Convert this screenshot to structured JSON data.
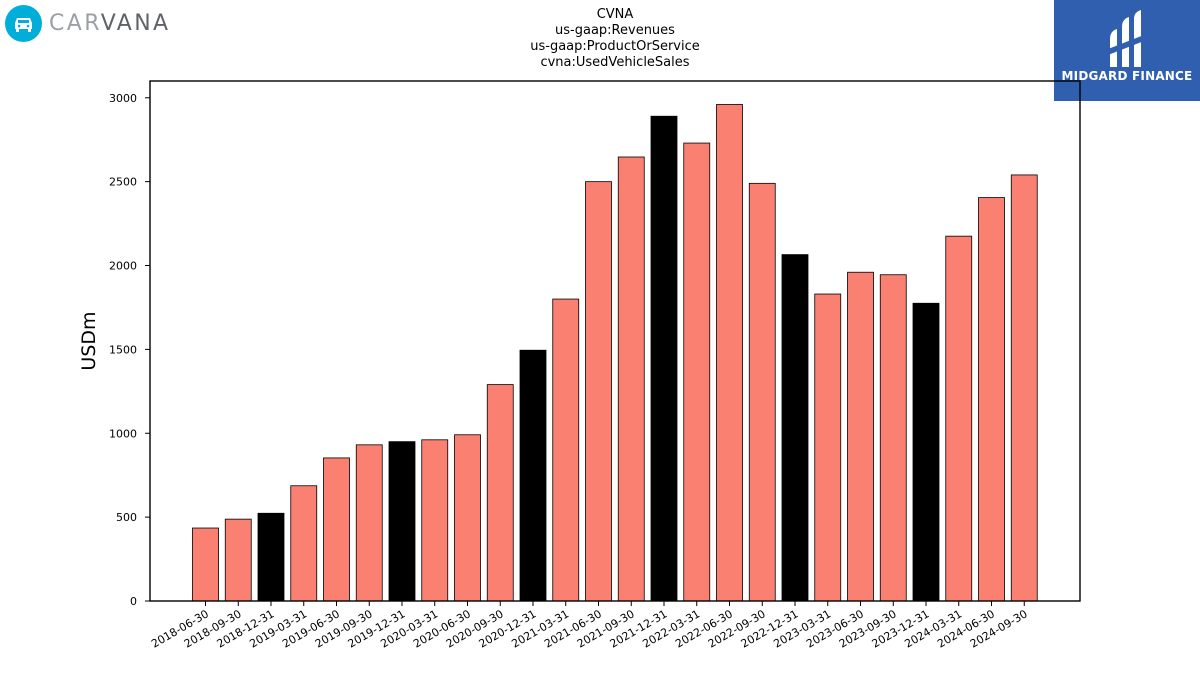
{
  "logos": {
    "left": {
      "text_light": "CAR",
      "text_dark": "VANA",
      "icon": "car-icon"
    },
    "right": {
      "text": "MIDGARD FINANCE",
      "icon": "midgard-mark-icon"
    }
  },
  "colors": {
    "bar_default": "#fa8072",
    "bar_highlight": "#000000",
    "bar_edge": "#000000",
    "midgard_bg": "#2f5fae",
    "carvana_accent": "#00aed9"
  },
  "chart_data": {
    "type": "bar",
    "title_lines": [
      "CVNA",
      "us-gaap:Revenues",
      "us-gaap:ProductOrService",
      "cvna:UsedVehicleSales"
    ],
    "xlabel": "",
    "ylabel": "USDm",
    "ylim": [
      0,
      3100
    ],
    "yticks": [
      0,
      500,
      1000,
      1500,
      2000,
      2500,
      3000
    ],
    "grid": false,
    "categories": [
      "2018-06-30",
      "2018-09-30",
      "2018-12-31",
      "2019-03-31",
      "2019-06-30",
      "2019-09-30",
      "2019-12-31",
      "2020-03-31",
      "2020-06-30",
      "2020-09-30",
      "2020-12-31",
      "2021-03-31",
      "2021-06-30",
      "2021-09-30",
      "2021-12-31",
      "2022-03-31",
      "2022-06-30",
      "2022-09-30",
      "2022-12-31",
      "2023-03-31",
      "2023-06-30",
      "2023-09-30",
      "2023-12-31",
      "2024-03-31",
      "2024-06-30",
      "2024-09-30"
    ],
    "values": [
      435,
      488,
      523,
      687,
      853,
      931,
      950,
      961,
      991,
      1290,
      1495,
      1800,
      2500,
      2647,
      2890,
      2730,
      2960,
      2490,
      2065,
      1830,
      1960,
      1945,
      1775,
      2175,
      2405,
      2540
    ],
    "highlight_categories": [
      "2018-12-31",
      "2019-12-31",
      "2020-12-31",
      "2021-12-31",
      "2022-12-31",
      "2023-12-31"
    ]
  }
}
